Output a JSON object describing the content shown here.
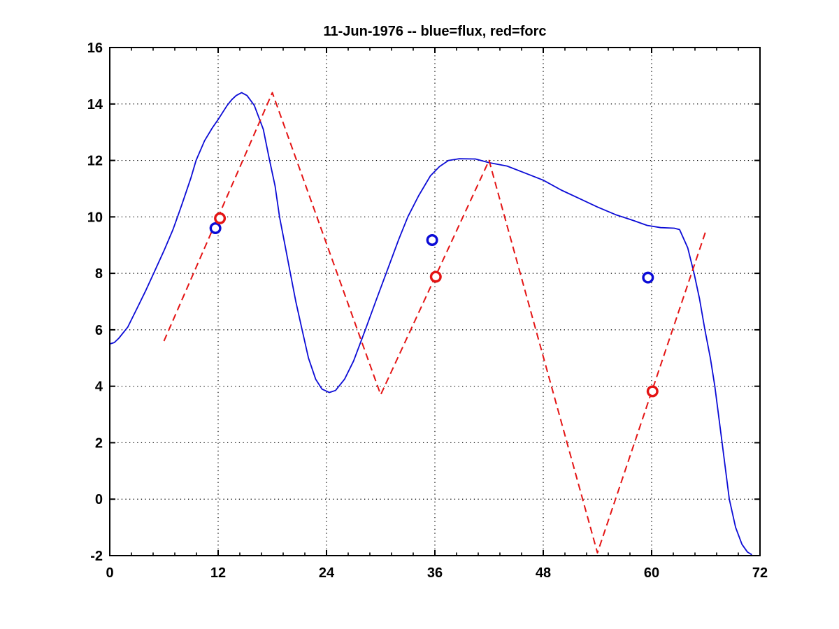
{
  "page": {
    "background": "#ffffff"
  },
  "chart_data": {
    "type": "line",
    "title": "11-Jun-1976 -- blue=flux, red=forc",
    "xlabel": "",
    "ylabel": "",
    "xlim": [
      0,
      72
    ],
    "ylim": [
      -2,
      16
    ],
    "xticks": [
      0,
      12,
      24,
      36,
      48,
      60,
      72
    ],
    "yticks": [
      -2,
      0,
      2,
      4,
      6,
      8,
      10,
      12,
      14,
      16
    ],
    "x_minor_tick_step": 2.4,
    "grid": "dotted",
    "grid_color": "#000000",
    "axis_color": "#000000",
    "legend": "encoded in title: blue=flux, red=forc",
    "series": [
      {
        "name": "flux",
        "label": "blue=flux",
        "type": "line",
        "style": "solid",
        "color": "#0b0bd6",
        "points": [
          [
            0,
            5.5
          ],
          [
            0.5,
            5.55
          ],
          [
            1,
            5.7
          ],
          [
            2,
            6.1
          ],
          [
            3,
            6.75
          ],
          [
            4,
            7.4
          ],
          [
            5,
            8.1
          ],
          [
            6,
            8.8
          ],
          [
            7,
            9.55
          ],
          [
            7.5,
            10.0
          ],
          [
            8,
            10.45
          ],
          [
            9,
            11.4
          ],
          [
            9.55,
            12.0
          ],
          [
            10.5,
            12.7
          ],
          [
            11.35,
            13.15
          ],
          [
            12,
            13.45
          ],
          [
            13,
            13.95
          ],
          [
            13.5,
            14.15
          ],
          [
            14,
            14.3
          ],
          [
            14.6,
            14.4
          ],
          [
            15.2,
            14.3
          ],
          [
            16,
            13.95
          ],
          [
            17,
            13.1
          ],
          [
            17.7,
            12.0
          ],
          [
            18.3,
            11.1
          ],
          [
            18.8,
            10.0
          ],
          [
            19.4,
            9.0
          ],
          [
            20,
            8.0
          ],
          [
            20.6,
            7.0
          ],
          [
            21.3,
            6.0
          ],
          [
            22,
            5.0
          ],
          [
            22.8,
            4.25
          ],
          [
            23.5,
            3.9
          ],
          [
            24.3,
            3.78
          ],
          [
            25,
            3.85
          ],
          [
            26,
            4.25
          ],
          [
            27,
            4.9
          ],
          [
            28.3,
            6.0
          ],
          [
            29.5,
            7.05
          ],
          [
            30.6,
            8.0
          ],
          [
            32,
            9.2
          ],
          [
            33,
            10.0
          ],
          [
            34.2,
            10.75
          ],
          [
            35.5,
            11.45
          ],
          [
            36.5,
            11.78
          ],
          [
            37.5,
            12.0
          ],
          [
            38.7,
            12.06
          ],
          [
            40.5,
            12.05
          ],
          [
            42,
            11.92
          ],
          [
            44,
            11.8
          ],
          [
            46,
            11.55
          ],
          [
            48,
            11.3
          ],
          [
            50,
            10.95
          ],
          [
            52,
            10.65
          ],
          [
            54,
            10.35
          ],
          [
            56,
            10.08
          ],
          [
            58,
            9.87
          ],
          [
            59.5,
            9.7
          ],
          [
            61,
            9.62
          ],
          [
            62.5,
            9.6
          ],
          [
            63.1,
            9.55
          ],
          [
            64,
            8.9
          ],
          [
            64.7,
            8.0
          ],
          [
            65.3,
            7.1
          ],
          [
            65.9,
            6.0
          ],
          [
            66.5,
            5.0
          ],
          [
            67,
            4.0
          ],
          [
            67.8,
            2.0
          ],
          [
            68.6,
            0.0
          ],
          [
            69.3,
            -1.0
          ],
          [
            70,
            -1.6
          ],
          [
            70.6,
            -1.87
          ],
          [
            71.1,
            -1.97
          ]
        ]
      },
      {
        "name": "forc",
        "label": "red=forc",
        "type": "line",
        "style": "dashed",
        "color": "#e41414",
        "points": [
          [
            6,
            5.6
          ],
          [
            18,
            14.4
          ],
          [
            30,
            3.7
          ],
          [
            42,
            12.0
          ],
          [
            54,
            -1.9
          ],
          [
            66,
            9.5
          ]
        ]
      },
      {
        "name": "flux-samples",
        "type": "scatter",
        "marker": "circle",
        "color": "#0b0bd6",
        "points": [
          [
            11.7,
            9.6
          ],
          [
            35.7,
            9.18
          ],
          [
            59.6,
            7.85
          ]
        ]
      },
      {
        "name": "forc-samples",
        "type": "scatter",
        "marker": "circle",
        "color": "#e41414",
        "points": [
          [
            12.2,
            9.95
          ],
          [
            36.1,
            7.88
          ],
          [
            60.1,
            3.82
          ]
        ]
      }
    ]
  }
}
